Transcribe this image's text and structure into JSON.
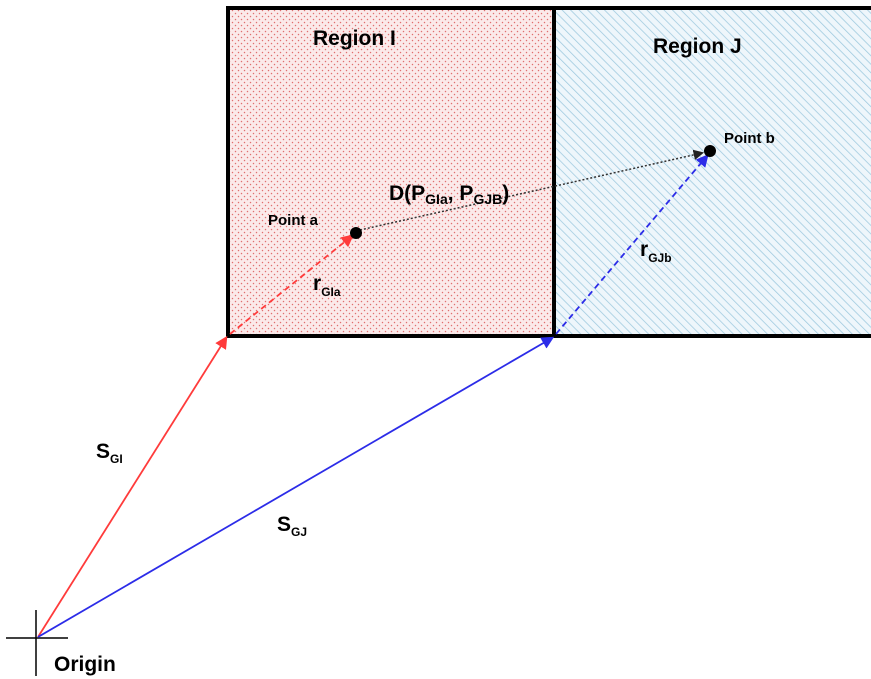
{
  "colors": {
    "region_i_fill": "#fbeaea",
    "region_i_dots": "#e07070",
    "region_j_fill": "#eef6fb",
    "region_j_hatch": "#9cc8de",
    "s_gi": "#ff3b3b",
    "s_gj": "#2c2ce8",
    "r_gia": "#ff3b3b",
    "r_gjb": "#2c2ce8",
    "distance": "#555555"
  },
  "regions": {
    "region_i": {
      "title": "Region I"
    },
    "region_j": {
      "title": "Region J"
    }
  },
  "points": {
    "a": {
      "label": "Point a"
    },
    "b": {
      "label": "Point b"
    }
  },
  "vectors": {
    "s_gi": {
      "main": "S",
      "sub": "GI"
    },
    "s_gj": {
      "main": "S",
      "sub": "GJ"
    },
    "r_gia": {
      "main": "r",
      "sub": "GIa"
    },
    "r_gjb": {
      "main": "r",
      "sub": "GJb"
    }
  },
  "distance": {
    "prefix": "D(P",
    "sub1": "GIa",
    "mid": ", P",
    "sub2": "GJB",
    "suffix": ")"
  },
  "origin": {
    "label": "Origin"
  }
}
